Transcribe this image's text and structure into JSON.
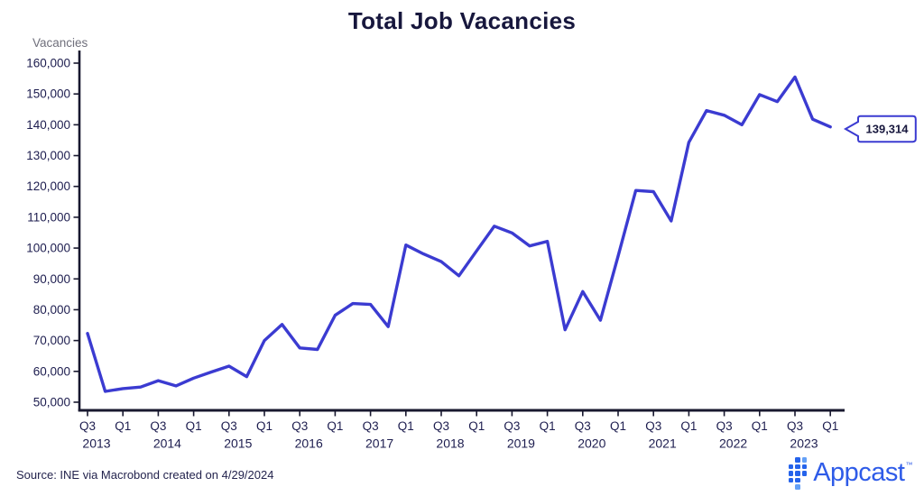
{
  "title": "Total Job Vacancies",
  "axis": {
    "y_label": "Vacancies"
  },
  "callout": {
    "label": "139,314"
  },
  "source_note": "Source: INE via Macrobond created on 4/29/2024",
  "logo": {
    "text": "Appcast",
    "tm": "™"
  },
  "colors": {
    "line": "#3b3bd1",
    "axis": "#18182f",
    "tick_text": "#1d1d4f",
    "title_text": "#17173d",
    "ylabel_text": "#6f6f7b",
    "logo_blue": "#2e5be8",
    "logo_icon_dark": "#2563eb",
    "logo_icon_light": "#64a0f6"
  },
  "chart_data": {
    "type": "line",
    "title": "Total Job Vacancies",
    "xlabel": "",
    "ylabel": "Vacancies",
    "ylim": [
      50000,
      160000
    ],
    "ytick_step": 10000,
    "yticks": [
      50000,
      60000,
      70000,
      80000,
      90000,
      100000,
      110000,
      120000,
      130000,
      140000,
      150000,
      160000
    ],
    "grid": false,
    "legend": "none",
    "x": [
      "2013 Q3",
      "2013 Q4",
      "2014 Q1",
      "2014 Q2",
      "2014 Q3",
      "2014 Q4",
      "2015 Q1",
      "2015 Q2",
      "2015 Q3",
      "2015 Q4",
      "2016 Q1",
      "2016 Q2",
      "2016 Q3",
      "2016 Q4",
      "2017 Q1",
      "2017 Q2",
      "2017 Q3",
      "2017 Q4",
      "2018 Q1",
      "2018 Q2",
      "2018 Q3",
      "2018 Q4",
      "2019 Q1",
      "2019 Q2",
      "2019 Q3",
      "2019 Q4",
      "2020 Q1",
      "2020 Q2",
      "2020 Q3",
      "2020 Q4",
      "2021 Q1",
      "2021 Q2",
      "2021 Q3",
      "2021 Q4",
      "2022 Q1",
      "2022 Q2",
      "2022 Q3",
      "2022 Q4",
      "2023 Q1",
      "2023 Q2",
      "2023 Q3",
      "2023 Q4",
      "2024 Q1"
    ],
    "values": [
      72300,
      53500,
      54400,
      54900,
      57000,
      55300,
      57800,
      59800,
      61700,
      58300,
      70000,
      75200,
      67600,
      67100,
      78200,
      82000,
      81700,
      74500,
      101000,
      98100,
      95600,
      91000,
      99100,
      107100,
      104900,
      100700,
      102200,
      73500,
      85900,
      76600,
      97400,
      118700,
      118300,
      108800,
      134300,
      144600,
      143100,
      140000,
      149800,
      147500,
      155500,
      141800,
      139314
    ],
    "xtick_every": 2,
    "year_ticks": [
      {
        "label": "2013",
        "index": 0
      },
      {
        "label": "2014",
        "index": 4
      },
      {
        "label": "2015",
        "index": 8
      },
      {
        "label": "2016",
        "index": 12
      },
      {
        "label": "2017",
        "index": 16
      },
      {
        "label": "2018",
        "index": 20
      },
      {
        "label": "2019",
        "index": 24
      },
      {
        "label": "2020",
        "index": 28
      },
      {
        "label": "2021",
        "index": 32
      },
      {
        "label": "2022",
        "index": 36
      },
      {
        "label": "2023",
        "index": 40
      }
    ],
    "line_color": "#3b3bd1",
    "final_value": 139314,
    "final_value_label": "139,314"
  }
}
